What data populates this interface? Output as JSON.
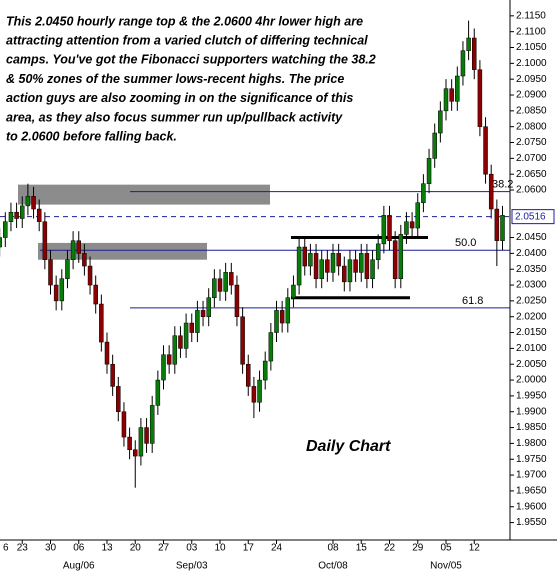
{
  "chart_data": {
    "type": "candlestick",
    "chart_label": "Daily Chart",
    "text_lines": [
      "This 2.0450 hourly range top & the 2.0600 4hr lower high are",
      "attracting attention from a varied clutch of differing technical",
      "camps. You've got the Fibonacci supporters watching the 38.2",
      "& 50% zones of the summer lows-recent highs. The price",
      "action guys are also zooming in on the significance of this",
      "area, as they also focus summer run up/pullback activity",
      "to 2.0600 before falling back."
    ],
    "categories": [
      "6",
      null,
      null,
      null,
      null,
      "23",
      null,
      null,
      null,
      null,
      "30",
      null,
      null,
      null,
      null,
      "06",
      null,
      null,
      null,
      null,
      "13",
      null,
      null,
      null,
      null,
      "20",
      null,
      null,
      null,
      null,
      "27",
      null,
      null,
      null,
      null,
      "03",
      null,
      null,
      null,
      null,
      "10",
      null,
      null,
      null,
      null,
      "17",
      null,
      null,
      null,
      null,
      "24",
      null,
      null,
      null,
      null,
      null,
      null,
      null,
      null,
      null,
      "08",
      null,
      null,
      null,
      null,
      "15",
      null,
      null,
      null,
      null,
      "22",
      null,
      null,
      null,
      null,
      "29",
      null,
      null,
      null,
      null,
      "05",
      null,
      null,
      null,
      null,
      "12",
      null,
      null,
      null,
      null,
      null
    ],
    "months": [
      null,
      null,
      null,
      null,
      null,
      null,
      null,
      null,
      null,
      null,
      null,
      null,
      null,
      null,
      null,
      "Aug/06",
      null,
      null,
      null,
      null,
      null,
      null,
      null,
      null,
      null,
      null,
      null,
      null,
      null,
      null,
      null,
      null,
      null,
      null,
      null,
      "Sep/03",
      null,
      null,
      null,
      null,
      null,
      null,
      null,
      null,
      null,
      null,
      null,
      null,
      null,
      null,
      null,
      null,
      null,
      null,
      null,
      null,
      null,
      null,
      null,
      null,
      "Oct/08",
      null,
      null,
      null,
      null,
      null,
      null,
      null,
      null,
      null,
      null,
      null,
      null,
      null,
      null,
      null,
      null,
      null,
      null,
      null,
      "Nov/05",
      null,
      null,
      null,
      null,
      null,
      null,
      null,
      null,
      null,
      null
    ],
    "open": [
      2.04,
      2.042,
      2.045,
      2.05,
      2.053,
      2.051,
      2.055,
      2.058,
      2.054,
      2.05,
      2.038,
      2.03,
      2.025,
      2.032,
      2.038,
      2.044,
      2.04,
      2.036,
      2.03,
      2.024,
      2.012,
      2.005,
      1.998,
      1.99,
      1.982,
      1.978,
      1.976,
      1.985,
      1.98,
      1.992,
      2.0,
      2.008,
      2.005,
      2.014,
      2.01,
      2.018,
      2.015,
      2.022,
      2.02,
      2.026,
      2.032,
      2.028,
      2.034,
      2.03,
      2.02,
      2.005,
      1.998,
      1.993,
      2.0,
      2.006,
      2.015,
      2.022,
      2.018,
      2.026,
      2.03,
      2.042,
      2.036,
      2.04,
      2.032,
      2.038,
      2.034,
      2.04,
      2.036,
      2.031,
      2.038,
      2.034,
      2.04,
      2.032,
      2.038,
      2.043,
      2.052,
      2.044,
      2.032,
      2.046,
      2.05,
      2.048,
      2.056,
      2.062,
      2.07,
      2.078,
      2.085,
      2.092,
      2.088,
      2.096,
      2.104,
      2.108,
      2.098,
      2.08,
      2.065,
      2.054,
      2.044
    ],
    "high": [
      2.045,
      2.048,
      2.053,
      2.056,
      2.056,
      2.058,
      2.062,
      2.061,
      2.057,
      2.053,
      2.041,
      2.033,
      2.035,
      2.041,
      2.047,
      2.047,
      2.043,
      2.039,
      2.033,
      2.027,
      2.015,
      2.008,
      2.001,
      1.993,
      1.985,
      1.981,
      1.988,
      1.988,
      1.995,
      2.003,
      2.011,
      2.011,
      2.017,
      2.017,
      2.021,
      2.021,
      2.025,
      2.025,
      2.029,
      2.035,
      2.035,
      2.037,
      2.037,
      2.033,
      2.023,
      2.008,
      2.001,
      2.003,
      2.009,
      2.018,
      2.025,
      2.025,
      2.029,
      2.033,
      2.045,
      2.045,
      2.043,
      2.043,
      2.041,
      2.041,
      2.043,
      2.043,
      2.039,
      2.041,
      2.041,
      2.043,
      2.043,
      2.041,
      2.046,
      2.055,
      2.055,
      2.047,
      2.049,
      2.053,
      2.053,
      2.059,
      2.065,
      2.073,
      2.081,
      2.088,
      2.095,
      2.095,
      2.099,
      2.107,
      2.1135,
      2.111,
      2.101,
      2.083,
      2.068,
      2.057,
      2.055
    ],
    "low": [
      2.037,
      2.039,
      2.042,
      2.047,
      2.048,
      2.048,
      2.052,
      2.051,
      2.047,
      2.035,
      2.027,
      2.022,
      2.022,
      2.029,
      2.035,
      2.037,
      2.033,
      2.027,
      2.021,
      2.009,
      2.002,
      1.995,
      1.987,
      1.979,
      1.975,
      1.966,
      1.973,
      1.977,
      1.977,
      1.989,
      1.997,
      2.002,
      2.002,
      2.007,
      2.007,
      2.012,
      2.012,
      2.017,
      2.017,
      2.023,
      2.025,
      2.025,
      2.027,
      2.017,
      2.002,
      1.995,
      1.988,
      1.99,
      1.997,
      2.003,
      2.012,
      2.015,
      2.015,
      2.023,
      2.027,
      2.033,
      2.033,
      2.029,
      2.029,
      2.031,
      2.031,
      2.033,
      2.028,
      2.028,
      2.031,
      2.031,
      2.029,
      2.029,
      2.035,
      2.04,
      2.041,
      2.029,
      2.029,
      2.043,
      2.045,
      2.045,
      2.053,
      2.059,
      2.067,
      2.075,
      2.082,
      2.085,
      2.085,
      2.093,
      2.101,
      2.095,
      2.077,
      2.062,
      2.051,
      2.036,
      2.041
    ],
    "close": [
      2.042,
      2.045,
      2.05,
      2.053,
      2.051,
      2.055,
      2.058,
      2.054,
      2.05,
      2.038,
      2.03,
      2.025,
      2.032,
      2.038,
      2.044,
      2.04,
      2.036,
      2.03,
      2.024,
      2.012,
      2.005,
      1.998,
      1.99,
      1.982,
      1.978,
      1.976,
      1.985,
      1.98,
      1.992,
      2.0,
      2.008,
      2.005,
      2.014,
      2.01,
      2.018,
      2.015,
      2.022,
      2.02,
      2.026,
      2.032,
      2.028,
      2.034,
      2.03,
      2.02,
      2.005,
      1.998,
      1.993,
      2.0,
      2.006,
      2.015,
      2.022,
      2.018,
      2.026,
      2.03,
      2.042,
      2.036,
      2.04,
      2.032,
      2.038,
      2.034,
      2.04,
      2.036,
      2.031,
      2.038,
      2.034,
      2.04,
      2.032,
      2.038,
      2.043,
      2.052,
      2.044,
      2.032,
      2.046,
      2.05,
      2.048,
      2.056,
      2.062,
      2.07,
      2.078,
      2.085,
      2.092,
      2.088,
      2.096,
      2.104,
      2.108,
      2.098,
      2.08,
      2.065,
      2.054,
      2.044,
      2.052
    ],
    "up_color": "#0a7a0a",
    "down_color": "#8b0000",
    "ylim": [
      1.9495,
      2.12
    ],
    "yticks": [
      {
        "value": 2.115,
        "label": "2.1150"
      },
      {
        "value": 2.11,
        "label": "2.1100"
      },
      {
        "value": 2.105,
        "label": "2.1050"
      },
      {
        "value": 2.1,
        "label": "2.1000"
      },
      {
        "value": 2.095,
        "label": "2.0950"
      },
      {
        "value": 2.09,
        "label": "2.0900"
      },
      {
        "value": 2.085,
        "label": "2.0850"
      },
      {
        "value": 2.08,
        "label": "2.0800"
      },
      {
        "value": 2.075,
        "label": "2.0750"
      },
      {
        "value": 2.07,
        "label": "2.0700"
      },
      {
        "value": 2.065,
        "label": "2.0650"
      },
      {
        "value": 2.06,
        "label": "2.0600"
      },
      {
        "value": 2.045,
        "label": "2.0450"
      },
      {
        "value": 2.04,
        "label": "2.0400"
      },
      {
        "value": 2.035,
        "label": "2.0350"
      },
      {
        "value": 2.03,
        "label": "2.0300"
      },
      {
        "value": 2.025,
        "label": "2.0250"
      },
      {
        "value": 2.02,
        "label": "2.0200"
      },
      {
        "value": 2.015,
        "label": "2.0150"
      },
      {
        "value": 2.01,
        "label": "2.0100"
      },
      {
        "value": 2.005,
        "label": "2.0050"
      },
      {
        "value": 2.0,
        "label": "2.0000"
      },
      {
        "value": 1.995,
        "label": "1.9950"
      },
      {
        "value": 1.99,
        "label": "1.9900"
      },
      {
        "value": 1.985,
        "label": "1.9850"
      },
      {
        "value": 1.98,
        "label": "1.9800"
      },
      {
        "value": 1.975,
        "label": "1.9750"
      },
      {
        "value": 1.97,
        "label": "1.9700"
      },
      {
        "value": 1.965,
        "label": "1.9650"
      },
      {
        "value": 1.96,
        "label": "1.9600"
      },
      {
        "value": 1.955,
        "label": "1.9550"
      }
    ],
    "last_price": {
      "value": 2.0516,
      "label": "2.0516"
    },
    "fib_levels": [
      {
        "label": "38.2",
        "value": 2.0595
      },
      {
        "label": "50.0",
        "value": 2.041
      },
      {
        "label": "61.8",
        "value": 2.0228
      }
    ],
    "zones": [
      {
        "low": 2.0554,
        "high": 2.0617
      },
      {
        "low": 2.038,
        "high": 2.0433
      }
    ],
    "range_lines": [
      2.045,
      2.026
    ]
  }
}
